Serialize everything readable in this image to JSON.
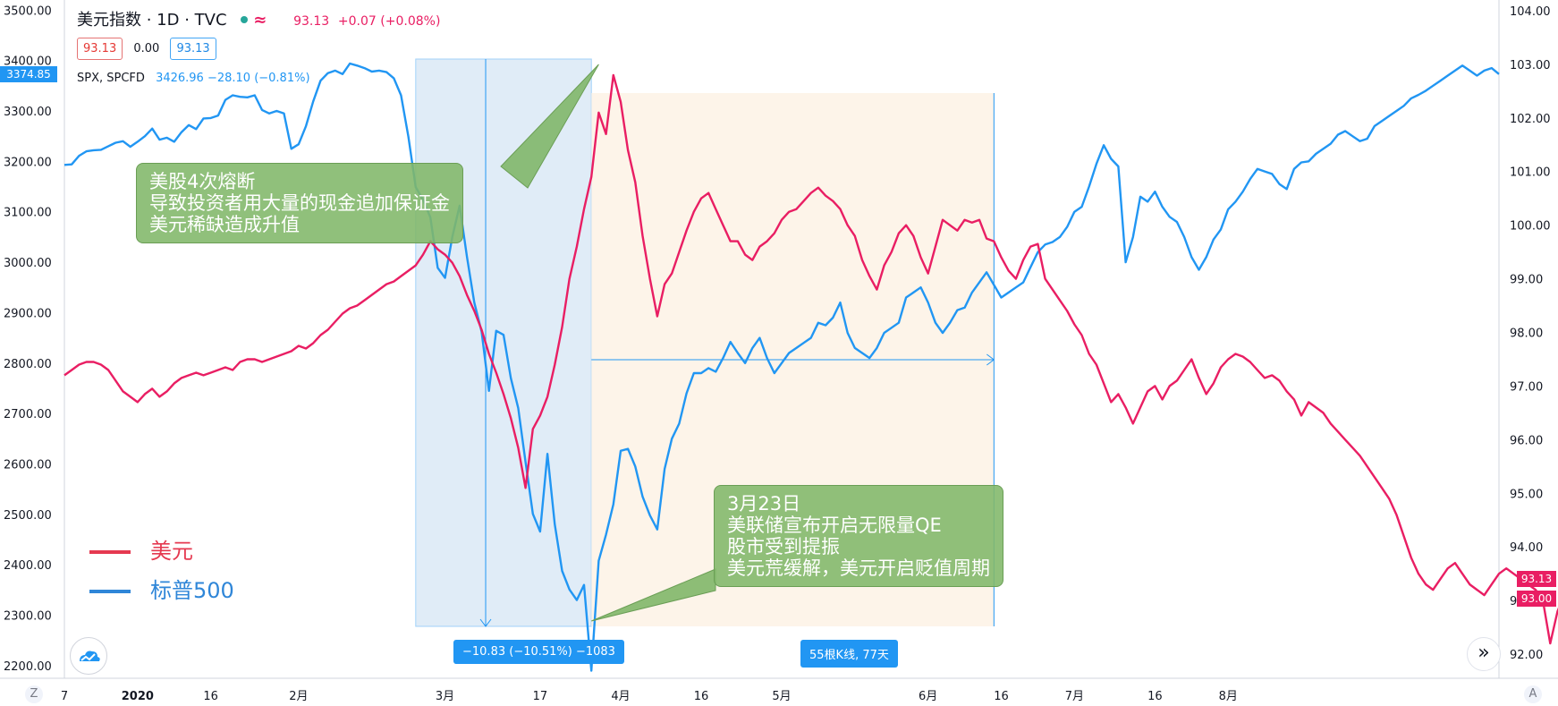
{
  "header": {
    "title": "美元指数 · 1D · TVC",
    "price": "93.13",
    "change": "+0.07 (+0.08%)"
  },
  "ohlc": {
    "v1": "93.13",
    "v2": "0.00",
    "v3": "93.13"
  },
  "spx": {
    "label": "SPX, SPCFD",
    "value": "3426.96 −28.10 (−0.81%)"
  },
  "left_price_tag": "3374.85",
  "right_price_tags": {
    "a": "93.13",
    "b": "93.00"
  },
  "annotations": {
    "a1": [
      "美股4次熔断",
      "导致投资者用大量的现金追加保证金",
      "美元稀缺造成升值"
    ],
    "a2": [
      "3月23日",
      "美联储宣布开启无限量QE",
      "股市受到提振",
      "美元荒缓解，美元开启贬值周期"
    ]
  },
  "badges": {
    "range1": "−10.83 (−10.51%) −1083",
    "range2": "55根K线, 77天"
  },
  "legend": {
    "usd": "美元",
    "spx": "标普500"
  },
  "corners": {
    "left": "Z",
    "right": "A"
  },
  "buttons": {
    "scroll": "»"
  },
  "colors": {
    "usd": "#e91e63",
    "spx": "#2196f3",
    "range1_fill": "#dbe9f6",
    "range2_fill": "#fdf3e7"
  },
  "chart_data": {
    "type": "line",
    "x_ticks": [
      "7",
      "2020",
      "16",
      "2月",
      "3月",
      "17",
      "4月",
      "16",
      "5月",
      "6月",
      "16",
      "7月",
      "16",
      "8月"
    ],
    "left_axis": {
      "ticks": [
        "2200.00",
        "2300.00",
        "2400.00",
        "2500.00",
        "2600.00",
        "2700.00",
        "2800.00",
        "2900.00",
        "3000.00",
        "3100.00",
        "3200.00",
        "3300.00",
        "3400.00",
        "3500.00"
      ],
      "range": [
        2175,
        3520
      ]
    },
    "right_axis": {
      "ticks": [
        "92.00",
        "93.00",
        "94.00",
        "95.00",
        "96.00",
        "97.00",
        "98.00",
        "99.00",
        "100.00",
        "101.00",
        "102.00",
        "103.00",
        "104.00"
      ],
      "range": [
        91.55,
        104.2
      ]
    },
    "series": [
      {
        "name": "标普500",
        "axis": "left",
        "values": [
          3193,
          3194,
          3211,
          3220,
          3222,
          3223,
          3230,
          3237,
          3240,
          3229,
          3239,
          3250,
          3265,
          3243,
          3247,
          3239,
          3258,
          3272,
          3264,
          3285,
          3286,
          3291,
          3322,
          3331,
          3328,
          3327,
          3331,
          3302,
          3295,
          3300,
          3295,
          3225,
          3234,
          3270,
          3319,
          3360,
          3375,
          3380,
          3373,
          3394,
          3390,
          3385,
          3378,
          3380,
          3377,
          3365,
          3331,
          3249,
          3149,
          3124,
          3089,
          2989,
          2969,
          3050,
          3112,
          3011,
          2920,
          2862,
          2745,
          2864,
          2856,
          2770,
          2711,
          2604,
          2501,
          2466,
          2620,
          2480,
          2388,
          2351,
          2330,
          2360,
          2190,
          2408,
          2460,
          2520,
          2626,
          2630,
          2595,
          2535,
          2498,
          2470,
          2590,
          2650,
          2680,
          2740,
          2780,
          2780,
          2790,
          2783,
          2810,
          2842,
          2820,
          2800,
          2830,
          2850,
          2810,
          2780,
          2800,
          2820,
          2830,
          2840,
          2850,
          2880,
          2875,
          2890,
          2920,
          2860,
          2830,
          2820,
          2810,
          2830,
          2860,
          2870,
          2880,
          2930,
          2940,
          2950,
          2920,
          2880,
          2860,
          2880,
          2905,
          2910,
          2940,
          2960,
          2980,
          2955,
          2930,
          2940,
          2950,
          2960,
          2990,
          3020,
          3035,
          3040,
          3050,
          3070,
          3100,
          3110,
          3150,
          3195,
          3232,
          3205,
          3190,
          3000,
          3050,
          3130,
          3120,
          3140,
          3110,
          3090,
          3080,
          3050,
          3010,
          2985,
          3010,
          3045,
          3065,
          3105,
          3120,
          3140,
          3165,
          3185,
          3180,
          3175,
          3155,
          3145,
          3185,
          3198,
          3200,
          3215,
          3225,
          3235,
          3253,
          3260,
          3250,
          3240,
          3245,
          3270,
          3280,
          3290,
          3300,
          3310,
          3325,
          3332,
          3340,
          3350,
          3360,
          3370,
          3380,
          3390,
          3380,
          3370,
          3380,
          3385,
          3373
        ]
      },
      {
        "name": "美元",
        "axis": "right",
        "values": [
          97.2,
          97.3,
          97.4,
          97.45,
          97.45,
          97.4,
          97.3,
          97.1,
          96.9,
          96.8,
          96.7,
          96.85,
          96.95,
          96.8,
          96.9,
          97.05,
          97.15,
          97.2,
          97.25,
          97.2,
          97.25,
          97.3,
          97.35,
          97.3,
          97.45,
          97.5,
          97.5,
          97.45,
          97.5,
          97.55,
          97.6,
          97.65,
          97.75,
          97.7,
          97.8,
          97.95,
          98.05,
          98.2,
          98.35,
          98.45,
          98.5,
          98.6,
          98.7,
          98.8,
          98.9,
          98.95,
          99.05,
          99.15,
          99.25,
          99.45,
          99.7,
          99.55,
          99.45,
          99.3,
          99.05,
          98.7,
          98.4,
          98.05,
          97.6,
          97.25,
          96.85,
          96.4,
          95.85,
          95.1,
          96.2,
          96.45,
          96.8,
          97.4,
          98.1,
          99.0,
          99.6,
          100.3,
          100.9,
          102.1,
          101.7,
          102.8,
          102.3,
          101.4,
          100.8,
          99.8,
          99.0,
          98.3,
          98.9,
          99.1,
          99.5,
          99.9,
          100.25,
          100.5,
          100.6,
          100.3,
          100.0,
          99.7,
          99.7,
          99.45,
          99.35,
          99.6,
          99.7,
          99.85,
          100.1,
          100.25,
          100.3,
          100.45,
          100.6,
          100.7,
          100.55,
          100.45,
          100.3,
          100.0,
          99.8,
          99.35,
          99.05,
          98.8,
          99.25,
          99.5,
          99.85,
          100.0,
          99.8,
          99.4,
          99.1,
          99.6,
          100.1,
          100.0,
          99.9,
          100.1,
          100.05,
          100.1,
          99.75,
          99.7,
          99.4,
          99.15,
          99.0,
          99.35,
          99.6,
          99.65,
          99.0,
          98.8,
          98.6,
          98.4,
          98.15,
          97.95,
          97.6,
          97.4,
          97.05,
          96.7,
          96.85,
          96.6,
          96.3,
          96.6,
          96.9,
          97.0,
          96.75,
          97.0,
          97.1,
          97.3,
          97.5,
          97.15,
          96.85,
          97.05,
          97.35,
          97.5,
          97.6,
          97.55,
          97.45,
          97.3,
          97.15,
          97.2,
          97.1,
          96.9,
          96.75,
          96.45,
          96.7,
          96.6,
          96.5,
          96.3,
          96.15,
          96.0,
          95.85,
          95.7,
          95.5,
          95.3,
          95.1,
          94.9,
          94.6,
          94.2,
          93.8,
          93.5,
          93.3,
          93.2,
          93.4,
          93.6,
          93.7,
          93.5,
          93.3,
          93.2,
          93.1,
          93.3,
          93.5,
          93.6,
          93.5,
          93.4,
          93.3,
          93.2,
          93.0,
          92.2,
          92.8,
          93.13
        ]
      }
    ],
    "annotations": [
      {
        "type": "date-range",
        "label": "−10.83 (−10.51%) −1083"
      },
      {
        "type": "date-range",
        "label": "55根K线, 77天"
      }
    ],
    "legend_placement": "bottom-left"
  }
}
